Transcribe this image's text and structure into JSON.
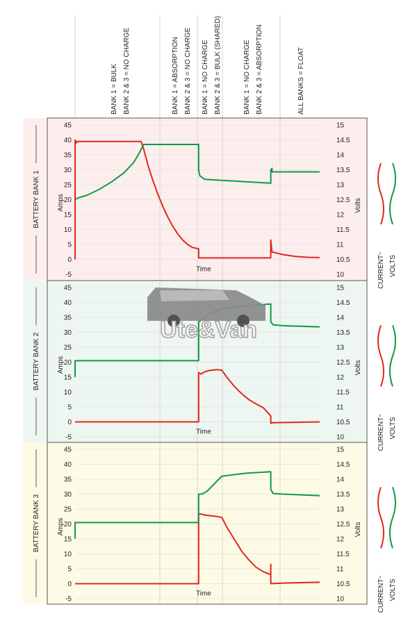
{
  "phases": [
    [
      "BANK 1 = BULK",
      "BANK 2 & 3 = NO CHARGE"
    ],
    [
      "BANK 1 = ABSORPTION",
      "BANK 2 & 3 = NO CHARGE"
    ],
    [
      "BANK 1 = NO CHARGE",
      "BANK 2 & 3 = BULK (SHARED)"
    ],
    [
      "BANK 1 = NO CHARGE",
      "BANK 2 & 3 = ABSORPTION"
    ],
    [
      "ALL BANKS = FLOAT"
    ]
  ],
  "legend": {
    "current": "CURRENT",
    "volts": "VOLTS"
  },
  "colors": {
    "current": "#e2261c",
    "volts": "#0f9a43"
  },
  "watermark": "Ute&Van",
  "chart_data": [
    {
      "type": "line",
      "panel_label": "BATTERY BANK 1",
      "background": "#fdeeee",
      "xlabel": "Time",
      "y_left_label": "Amps",
      "y_right_label": "Volts",
      "y_left_ticks": [
        45,
        40,
        35,
        30,
        25,
        20,
        15,
        10,
        5,
        0,
        -5
      ],
      "y_right_ticks": [
        15,
        14.5,
        14,
        13.5,
        13,
        12.5,
        12,
        11.5,
        11,
        10.5,
        10
      ],
      "y_left_range": [
        -5,
        45
      ],
      "y_right_range": [
        10,
        15
      ],
      "series": [
        {
          "name": "CURRENT",
          "axis": "left",
          "points": [
            [
              0,
              0
            ],
            [
              0,
              40
            ],
            [
              0.5,
              39
            ],
            [
              1,
              39.5
            ],
            [
              27,
              39.5
            ],
            [
              28,
              37
            ],
            [
              30,
              31
            ],
            [
              32,
              26
            ],
            [
              34,
              21.5
            ],
            [
              36,
              17.5
            ],
            [
              38,
              14
            ],
            [
              40,
              11
            ],
            [
              42,
              8.5
            ],
            [
              44,
              6.5
            ],
            [
              46,
              5
            ],
            [
              48,
              4
            ],
            [
              50.5,
              3.5
            ],
            [
              50.5,
              0.5
            ],
            [
              80,
              0.5
            ],
            [
              80,
              6.5
            ],
            [
              80.5,
              2.5
            ],
            [
              85,
              1.6
            ],
            [
              90,
              1
            ],
            [
              95,
              0.7
            ],
            [
              100,
              0.6
            ]
          ]
        },
        {
          "name": "VOLTS",
          "axis": "right",
          "points": [
            [
              0,
              12.5
            ],
            [
              1,
              12.55
            ],
            [
              5,
              12.65
            ],
            [
              10,
              12.85
            ],
            [
              15,
              13.1
            ],
            [
              20,
              13.4
            ],
            [
              24,
              13.75
            ],
            [
              26.5,
              14.1
            ],
            [
              28,
              14.35
            ],
            [
              50.5,
              14.35
            ],
            [
              50.5,
              13.5
            ],
            [
              51,
              13.3
            ],
            [
              53,
              13.18
            ],
            [
              80,
              13.05
            ],
            [
              80,
              13.5
            ],
            [
              80.5,
              13.55
            ],
            [
              80.5,
              13.43
            ],
            [
              100,
              13.43
            ]
          ]
        }
      ]
    },
    {
      "type": "line",
      "panel_label": "BATTERY BANK 2",
      "background": "#eef6f1",
      "xlabel": "Time",
      "y_left_label": "Amps",
      "y_right_label": "Volts",
      "y_left_ticks": [
        45,
        40,
        35,
        30,
        25,
        20,
        15,
        10,
        5,
        0,
        -5
      ],
      "y_right_ticks": [
        15,
        14.5,
        14,
        13.5,
        13,
        12.5,
        12,
        11.5,
        11,
        10.5,
        10
      ],
      "y_left_range": [
        -5,
        45
      ],
      "y_right_range": [
        10,
        15
      ],
      "series": [
        {
          "name": "CURRENT",
          "axis": "left",
          "points": [
            [
              0,
              0
            ],
            [
              50.5,
              0
            ],
            [
              50.5,
              16.5
            ],
            [
              51.5,
              16
            ],
            [
              53,
              16.8
            ],
            [
              55,
              17.2
            ],
            [
              58,
              17.5
            ],
            [
              60,
              17.3
            ],
            [
              62,
              15
            ],
            [
              65,
              12
            ],
            [
              68,
              9.5
            ],
            [
              71,
              7.5
            ],
            [
              74,
              6
            ],
            [
              77,
              4.7
            ],
            [
              80,
              2
            ],
            [
              80,
              -0.5
            ],
            [
              80.5,
              -0.3
            ],
            [
              100,
              0
            ]
          ]
        },
        {
          "name": "VOLTS",
          "axis": "right",
          "points": [
            [
              0,
              12
            ],
            [
              0,
              12.55
            ],
            [
              50.5,
              12.55
            ],
            [
              50.5,
              13.85
            ],
            [
              51.5,
              13.9
            ],
            [
              53,
              14.0
            ],
            [
              55,
              14.12
            ],
            [
              58,
              14.22
            ],
            [
              60,
              14.3
            ],
            [
              65,
              14.35
            ],
            [
              80,
              14.45
            ],
            [
              80,
              13.85
            ],
            [
              81,
              13.75
            ],
            [
              85,
              13.72
            ],
            [
              100,
              13.68
            ]
          ]
        }
      ]
    },
    {
      "type": "line",
      "panel_label": "BATTERY BANK 3",
      "background": "#fdfbe6",
      "xlabel": "Time",
      "y_left_label": "Amps",
      "y_right_label": "Volts",
      "y_left_ticks": [
        45,
        40,
        35,
        30,
        25,
        20,
        15,
        10,
        5,
        0,
        -5
      ],
      "y_right_ticks": [
        15,
        14.5,
        14,
        13.5,
        13,
        12.5,
        12,
        11.5,
        11,
        10.5,
        10
      ],
      "y_left_range": [
        -5,
        45
      ],
      "y_right_range": [
        10,
        15
      ],
      "series": [
        {
          "name": "CURRENT",
          "axis": "left",
          "points": [
            [
              0,
              0
            ],
            [
              50.5,
              0
            ],
            [
              50.5,
              23.5
            ],
            [
              53,
              23
            ],
            [
              58,
              22.5
            ],
            [
              60,
              22.2
            ],
            [
              62,
              19
            ],
            [
              65,
              15
            ],
            [
              68,
              11
            ],
            [
              71,
              8
            ],
            [
              74,
              5.5
            ],
            [
              77,
              4
            ],
            [
              80,
              3
            ],
            [
              80,
              6.5
            ],
            [
              80,
              0
            ],
            [
              85,
              0.2
            ],
            [
              100,
              0.5
            ]
          ]
        },
        {
          "name": "VOLTS",
          "axis": "right",
          "points": [
            [
              0,
              12
            ],
            [
              0,
              12.55
            ],
            [
              50.5,
              12.55
            ],
            [
              50.5,
              13.5
            ],
            [
              52,
              13.5
            ],
            [
              54,
              13.6
            ],
            [
              57,
              13.85
            ],
            [
              60,
              14.1
            ],
            [
              65,
              14.15
            ],
            [
              70,
              14.2
            ],
            [
              80,
              14.25
            ],
            [
              80,
              13.65
            ],
            [
              81,
              13.52
            ],
            [
              85,
              13.5
            ],
            [
              100,
              13.45
            ]
          ]
        }
      ]
    }
  ]
}
